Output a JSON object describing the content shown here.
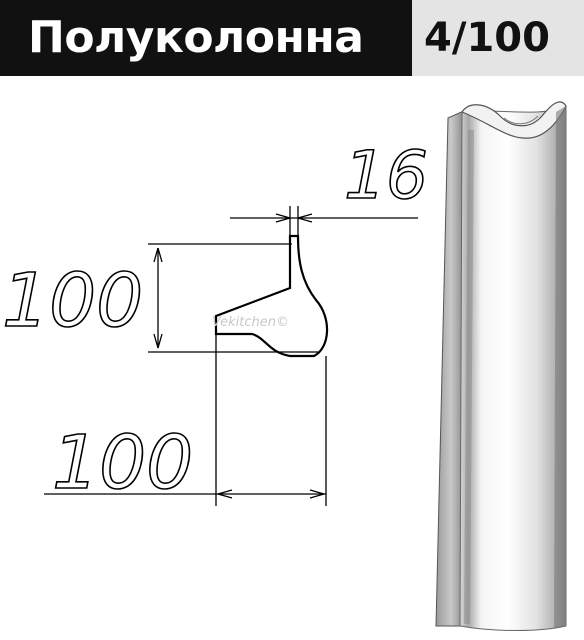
{
  "header": {
    "title": "Полуколонна",
    "code": "4/100"
  },
  "dimensions": {
    "thickness": "16",
    "height": "100",
    "width": "100"
  },
  "watermark": "Vekitchen©",
  "colors": {
    "title_bg": "#111111",
    "title_fg": "#ffffff",
    "code_bg": "#e4e4e4",
    "code_fg": "#111111"
  }
}
